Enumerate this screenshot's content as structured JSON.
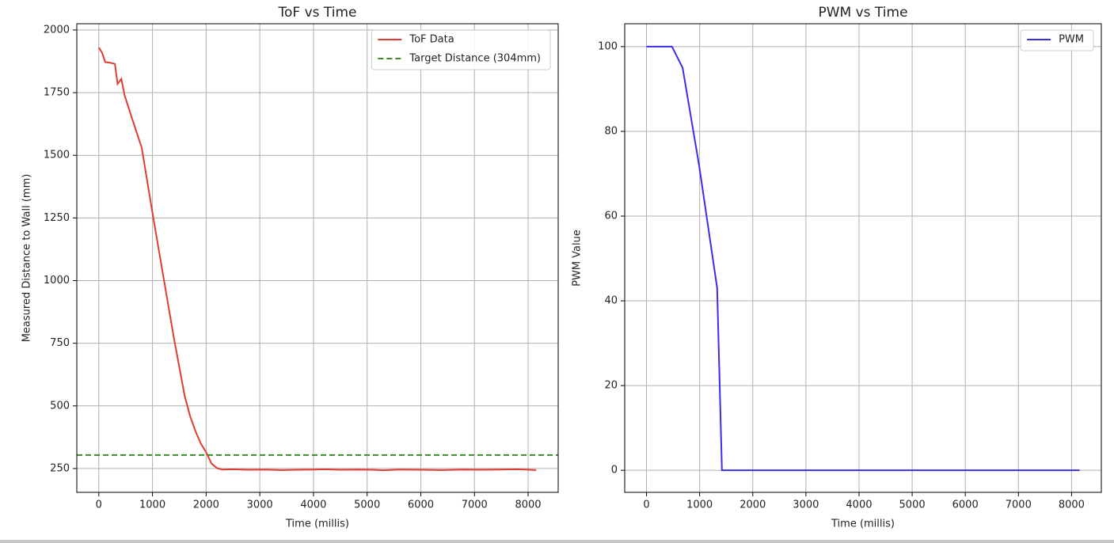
{
  "chart_data": [
    {
      "type": "line",
      "title": "ToF vs Time",
      "xlabel": "Time (millis)",
      "ylabel": "Measured Distance to Wall (mm)",
      "x": [
        0,
        60,
        120,
        200,
        300,
        350,
        420,
        480,
        600,
        800,
        1000,
        1200,
        1400,
        1600,
        1700,
        1800,
        1900,
        2000,
        2100,
        2200,
        2300,
        2500,
        2800,
        3100,
        3400,
        3700,
        4000,
        4200,
        4500,
        4800,
        5100,
        5300,
        5600,
        6000,
        6400,
        6800,
        7100,
        7400,
        7800,
        8150
      ],
      "series": [
        {
          "name": "ToF Data",
          "color": "#e03c31",
          "values": [
            1930,
            1910,
            1872,
            1870,
            1865,
            1785,
            1805,
            1740,
            1660,
            1530,
            1270,
            1020,
            770,
            540,
            460,
            400,
            350,
            315,
            270,
            252,
            246,
            247,
            245,
            246,
            244,
            245,
            246,
            247,
            245,
            246,
            245,
            243,
            246,
            245,
            244,
            246,
            245,
            246,
            247,
            244
          ]
        }
      ],
      "hlines": [
        {
          "name": "Target Distance (304mm)",
          "y": 304,
          "color": "#3a8a2a",
          "style": "dashed"
        }
      ],
      "xlim": [
        -410,
        8560
      ],
      "ylim": [
        155,
        2025
      ],
      "xticks": [
        0,
        1000,
        2000,
        3000,
        4000,
        5000,
        6000,
        7000,
        8000
      ],
      "yticks": [
        250,
        500,
        750,
        1000,
        1250,
        1500,
        1750,
        2000
      ],
      "grid": true,
      "legend": "upper right"
    },
    {
      "type": "line",
      "title": "PWM vs Time",
      "xlabel": "Time (millis)",
      "ylabel": "PWM Value",
      "x": [
        0,
        480,
        680,
        990,
        1330,
        1420,
        8150
      ],
      "series": [
        {
          "name": "PWM",
          "color": "#3a2ee8",
          "values": [
            100,
            100,
            95,
            72,
            43,
            0,
            0
          ]
        }
      ],
      "xlim": [
        -410,
        8560
      ],
      "ylim": [
        -5.2,
        105.4
      ],
      "xticks": [
        0,
        1000,
        2000,
        3000,
        4000,
        5000,
        6000,
        7000,
        8000
      ],
      "yticks": [
        0,
        20,
        40,
        60,
        80,
        100
      ],
      "grid": true,
      "legend": "upper right"
    }
  ]
}
